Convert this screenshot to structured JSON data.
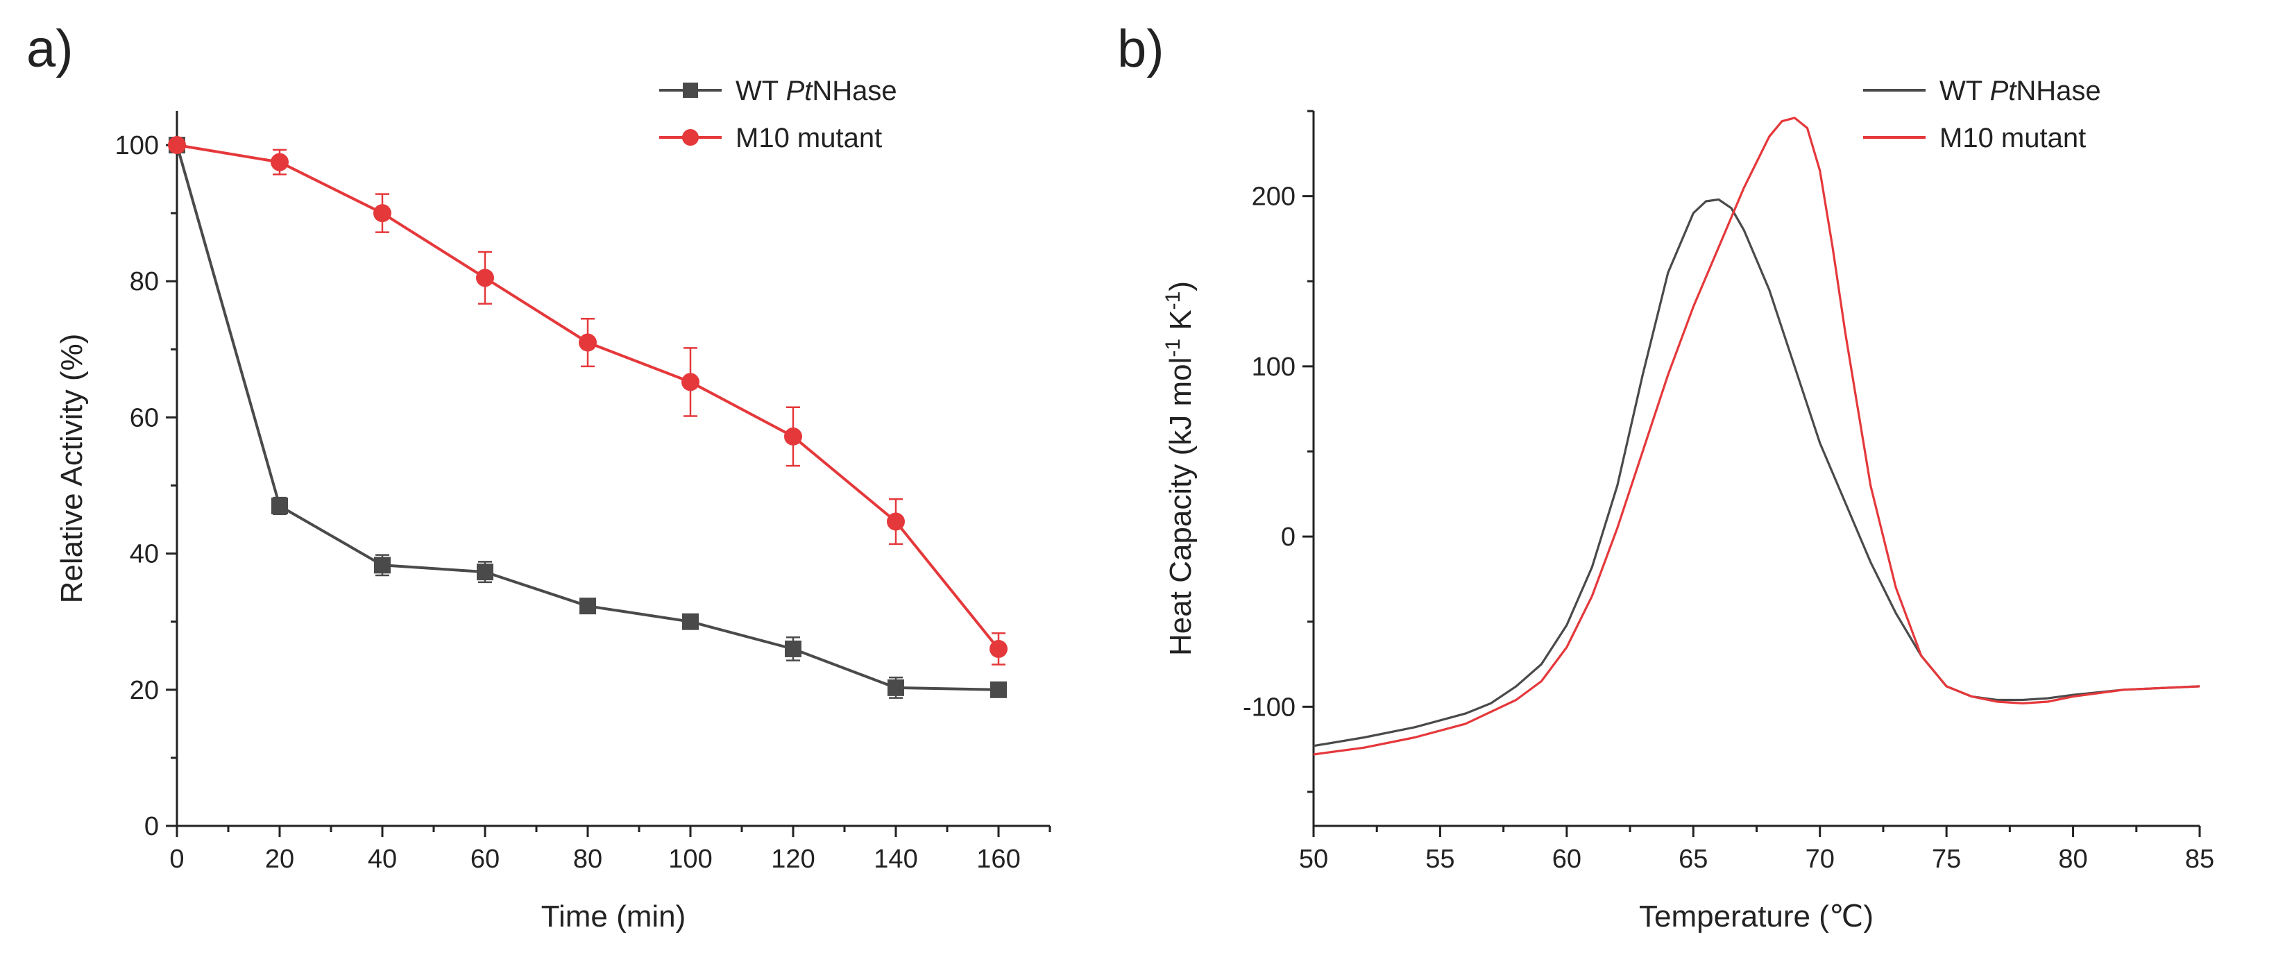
{
  "colors": {
    "wt": "#4a4a4a",
    "m10": "#e5383b",
    "axis": "#222222"
  },
  "chart_data": [
    {
      "panel": "a)",
      "type": "line",
      "title": "",
      "xlabel": "Time (min)",
      "ylabel": "Relative Activity (%)",
      "xlim": [
        0,
        170
      ],
      "ylim": [
        0,
        105
      ],
      "xticks": [
        0,
        20,
        40,
        60,
        80,
        100,
        120,
        140,
        160
      ],
      "yticks": [
        0,
        20,
        40,
        60,
        80,
        100
      ],
      "legend": "top-right",
      "grid": false,
      "series": [
        {
          "name": "WT PtNHase",
          "name_parts": [
            "WT ",
            "Pt",
            "NHase"
          ],
          "color": "#4a4a4a",
          "marker": "square",
          "x": [
            0,
            20,
            40,
            60,
            80,
            100,
            120,
            140,
            160
          ],
          "y": [
            100,
            47,
            38.3,
            37.3,
            32.3,
            30,
            26,
            20.3,
            20
          ],
          "err": [
            0,
            1.2,
            1.5,
            1.5,
            0.6,
            0.6,
            1.7,
            1.5,
            0.8
          ]
        },
        {
          "name": "M10 mutant",
          "name_parts": [
            "M10 mutant"
          ],
          "color": "#e5383b",
          "marker": "circle",
          "x": [
            0,
            20,
            40,
            60,
            80,
            100,
            120,
            140,
            160
          ],
          "y": [
            100,
            97.5,
            90,
            80.5,
            71,
            65.2,
            57.2,
            44.7,
            26
          ],
          "err": [
            0,
            1.8,
            2.8,
            3.8,
            3.5,
            5,
            4.3,
            3.3,
            2.3
          ]
        }
      ]
    },
    {
      "panel": "b)",
      "type": "line",
      "title": "",
      "xlabel": "Temperature (℃)",
      "ylabel_parts": [
        "Heat Capacity (kJ mol",
        "-1",
        " K",
        "-1",
        ")"
      ],
      "xlim": [
        50,
        85
      ],
      "ylim": [
        -170,
        250
      ],
      "xticks": [
        50,
        55,
        60,
        65,
        70,
        75,
        80,
        85
      ],
      "yticks": [
        -100,
        0,
        100,
        200
      ],
      "legend": "top-right",
      "grid": false,
      "series": [
        {
          "name": "WT PtNHase",
          "name_parts": [
            "WT ",
            "Pt",
            "NHase"
          ],
          "color": "#4a4a4a",
          "x": [
            50,
            52,
            54,
            56,
            57,
            58,
            59,
            60,
            61,
            62,
            63,
            64,
            65,
            65.5,
            66,
            66.5,
            67,
            68,
            69,
            70,
            71,
            72,
            73,
            74,
            75,
            76,
            77,
            78,
            79,
            80,
            82,
            85
          ],
          "y": [
            -123,
            -118,
            -112,
            -104,
            -98,
            -88,
            -75,
            -52,
            -18,
            30,
            95,
            155,
            190,
            197,
            198,
            193,
            180,
            145,
            100,
            55,
            20,
            -15,
            -45,
            -70,
            -88,
            -94,
            -96,
            -96,
            -95,
            -93,
            -90,
            -88
          ]
        },
        {
          "name": "M10 mutant",
          "name_parts": [
            "M10 mutant"
          ],
          "color": "#e5383b",
          "x": [
            50,
            52,
            54,
            56,
            58,
            59,
            60,
            61,
            62,
            63,
            64,
            65,
            66,
            67,
            68,
            68.5,
            69,
            69.5,
            70,
            70.5,
            71,
            72,
            73,
            74,
            75,
            76,
            77,
            78,
            79,
            80,
            82,
            85
          ],
          "y": [
            -128,
            -124,
            -118,
            -110,
            -96,
            -85,
            -65,
            -35,
            5,
            50,
            95,
            135,
            170,
            205,
            235,
            244,
            246,
            240,
            215,
            170,
            120,
            30,
            -30,
            -70,
            -88,
            -94,
            -97,
            -98,
            -97,
            -94,
            -90,
            -88
          ]
        }
      ]
    }
  ]
}
